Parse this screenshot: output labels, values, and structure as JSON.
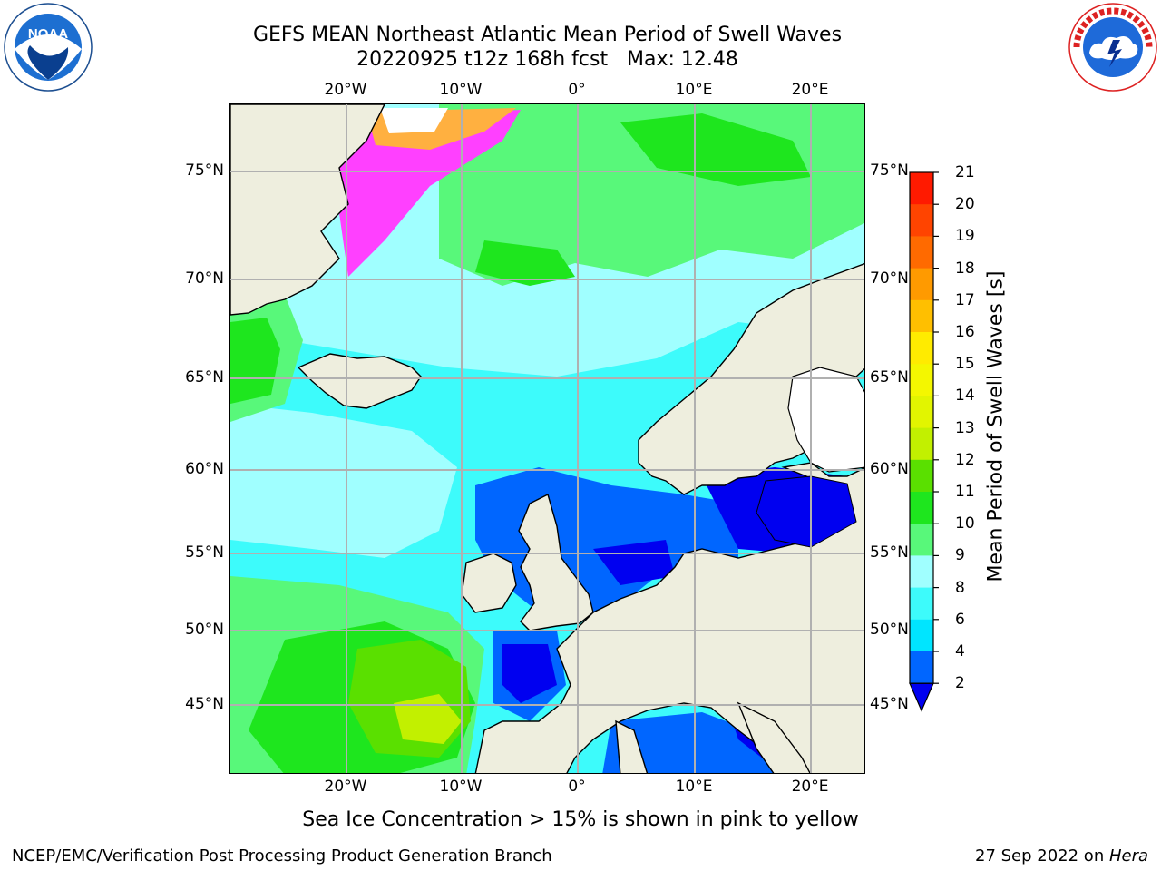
{
  "header": {
    "title_line1": "GEFS MEAN Northeast Atlantic Mean Period of Swell Waves",
    "title_line2": "20220925 t12z 168h fcst   Max: 12.48"
  },
  "map": {
    "lon_labels": [
      "20°W",
      "10°W",
      "0°",
      "10°E",
      "20°E"
    ],
    "lat_labels": [
      "75°N",
      "70°N",
      "65°N",
      "60°N",
      "55°N",
      "50°N",
      "45°N"
    ],
    "colors": {
      "land": "#eeeede",
      "ice_pink": "#ff40ff",
      "ice_orange": "#ffb040",
      "gridline": "#b0b0b0"
    }
  },
  "colorbar": {
    "title": "Mean Period of Swell Waves [s]",
    "ticks": [
      "21",
      "20",
      "19",
      "18",
      "17",
      "16",
      "15",
      "14",
      "13",
      "12",
      "11",
      "10",
      "9",
      "8",
      "6",
      "4",
      "2"
    ],
    "bins": [
      {
        "from": 2,
        "to": 4,
        "color": "#0066ff"
      },
      {
        "from": 4,
        "to": 6,
        "color": "#00e5ff"
      },
      {
        "from": 6,
        "to": 8,
        "color": "#3dfbfb"
      },
      {
        "from": 8,
        "to": 9,
        "color": "#a0ffff"
      },
      {
        "from": 9,
        "to": 10,
        "color": "#58f87a"
      },
      {
        "from": 10,
        "to": 11,
        "color": "#1ee61e"
      },
      {
        "from": 11,
        "to": 12,
        "color": "#5ae000"
      },
      {
        "from": 12,
        "to": 13,
        "color": "#c2f000"
      },
      {
        "from": 13,
        "to": 14,
        "color": "#e2f500"
      },
      {
        "from": 14,
        "to": 15,
        "color": "#f4f700"
      },
      {
        "from": 15,
        "to": 16,
        "color": "#ffeb00"
      },
      {
        "from": 16,
        "to": 17,
        "color": "#ffbf00"
      },
      {
        "from": 17,
        "to": 18,
        "color": "#ff9a00"
      },
      {
        "from": 18,
        "to": 19,
        "color": "#ff6a00"
      },
      {
        "from": 19,
        "to": 20,
        "color": "#ff4400"
      },
      {
        "from": 20,
        "to": 21,
        "color": "#ff1a00"
      }
    ],
    "under_color": "#0000f0"
  },
  "footnote": "Sea Ice Concentration > 15% is shown in pink to yellow",
  "footer": {
    "left": "NCEP/EMC/Verification Post Processing Product Generation Branch",
    "date": "27 Sep 2022 on ",
    "host": "Hera"
  }
}
